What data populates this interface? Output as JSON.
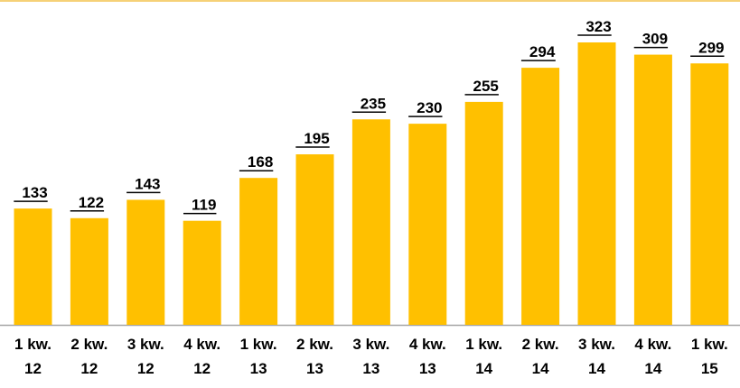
{
  "chart_data": {
    "type": "bar",
    "categories": [
      "1 kw. 12",
      "2 kw. 12",
      "3 kw. 12",
      "4 kw. 12",
      "1 kw. 13",
      "2 kw. 13",
      "3 kw. 13",
      "4 kw. 13",
      "1 kw. 14",
      "2 kw. 14",
      "3 kw. 14",
      "4 kw. 14",
      "1 kw. 15"
    ],
    "values": [
      133,
      122,
      143,
      119,
      168,
      195,
      235,
      230,
      255,
      294,
      323,
      309,
      299
    ],
    "color": "#ffc000"
  }
}
